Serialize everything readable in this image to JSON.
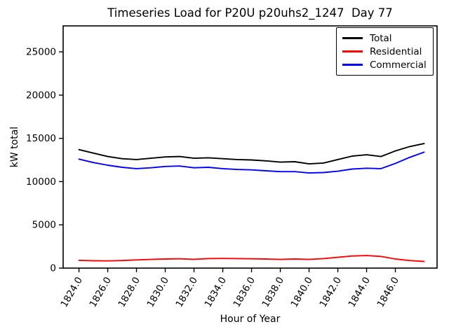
{
  "figure": {
    "title": "Timeseries Load for P20U p20uhs2_1247  Day 77",
    "xlabel": "Hour of Year",
    "ylabel": "kW total"
  },
  "chart_data": {
    "type": "line",
    "title": "Timeseries Load for P20U p20uhs2_1247  Day 77",
    "xlabel": "Hour of Year",
    "ylabel": "kW total",
    "grid": false,
    "legend_position": "upper right",
    "xlim": [
      1822.9,
      1848.9
    ],
    "ylim": [
      0,
      28000
    ],
    "xtick_labels": [
      "1824.0",
      "1826.0",
      "1828.0",
      "1830.0",
      "1832.0",
      "1834.0",
      "1836.0",
      "1838.0",
      "1840.0",
      "1842.0",
      "1844.0",
      "1846.0"
    ],
    "ytick_labels": [
      "0",
      "5000",
      "10000",
      "15000",
      "20000",
      "25000"
    ],
    "x_tick_rotation_deg": 60,
    "x": [
      1824,
      1825,
      1826,
      1827,
      1828,
      1829,
      1830,
      1831,
      1832,
      1833,
      1834,
      1835,
      1836,
      1837,
      1838,
      1839,
      1840,
      1841,
      1842,
      1843,
      1844,
      1845,
      1846,
      1847,
      1848
    ],
    "series": [
      {
        "name": "Total",
        "color": "#000000",
        "values": [
          13700,
          13300,
          12900,
          12650,
          12550,
          12700,
          12850,
          12900,
          12700,
          12750,
          12650,
          12550,
          12500,
          12400,
          12250,
          12300,
          12050,
          12150,
          12550,
          12950,
          13100,
          12900,
          13550,
          14050,
          14400
        ]
      },
      {
        "name": "Residential",
        "color": "#ff0000",
        "values": [
          900,
          850,
          830,
          870,
          950,
          1000,
          1050,
          1080,
          1020,
          1100,
          1120,
          1100,
          1080,
          1050,
          1000,
          1050,
          1000,
          1100,
          1250,
          1400,
          1450,
          1350,
          1050,
          870,
          770
        ]
      },
      {
        "name": "Commercial",
        "color": "#0000ff",
        "values": [
          12600,
          12200,
          11900,
          11650,
          11500,
          11600,
          11750,
          11800,
          11600,
          11650,
          11500,
          11400,
          11350,
          11250,
          11150,
          11150,
          11000,
          11050,
          11200,
          11450,
          11550,
          11500,
          12100,
          12800,
          13400
        ]
      }
    ]
  }
}
